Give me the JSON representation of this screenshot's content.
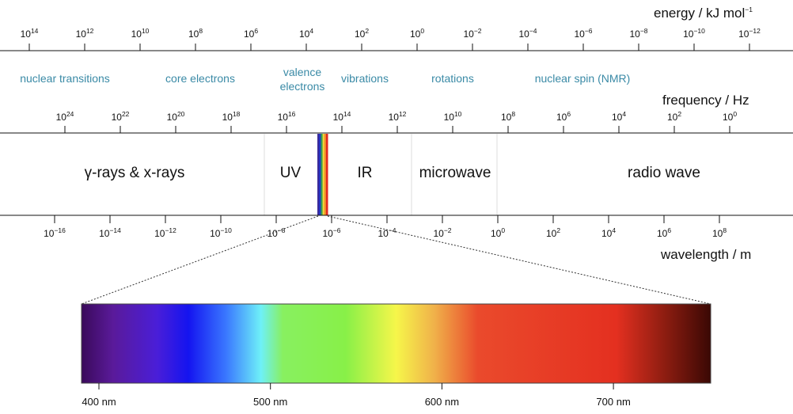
{
  "energy_axis": {
    "title": "energy / kJ mol",
    "title_exp": "−1",
    "ticks": [
      {
        "base": "10",
        "exp": "14"
      },
      {
        "base": "10",
        "exp": "12"
      },
      {
        "base": "10",
        "exp": "10"
      },
      {
        "base": "10",
        "exp": "8"
      },
      {
        "base": "10",
        "exp": "6"
      },
      {
        "base": "10",
        "exp": "4"
      },
      {
        "base": "10",
        "exp": "2"
      },
      {
        "base": "10",
        "exp": "0"
      },
      {
        "base": "10",
        "exp": "−2"
      },
      {
        "base": "10",
        "exp": "−4"
      },
      {
        "base": "10",
        "exp": "−6"
      },
      {
        "base": "10",
        "exp": "−8"
      },
      {
        "base": "10",
        "exp": "−10"
      },
      {
        "base": "10",
        "exp": "−12"
      }
    ]
  },
  "transitions": [
    {
      "lines": [
        "nuclear transitions"
      ]
    },
    {
      "lines": [
        "core electrons"
      ]
    },
    {
      "lines": [
        "valence",
        "electrons"
      ]
    },
    {
      "lines": [
        "vibrations"
      ]
    },
    {
      "lines": [
        "rotations"
      ]
    },
    {
      "lines": [
        "nuclear spin (NMR)"
      ]
    }
  ],
  "frequency_axis": {
    "title": "frequency / Hz",
    "ticks": [
      {
        "base": "10",
        "exp": "24"
      },
      {
        "base": "10",
        "exp": "22"
      },
      {
        "base": "10",
        "exp": "20"
      },
      {
        "base": "10",
        "exp": "18"
      },
      {
        "base": "10",
        "exp": "16"
      },
      {
        "base": "10",
        "exp": "14"
      },
      {
        "base": "10",
        "exp": "12"
      },
      {
        "base": "10",
        "exp": "10"
      },
      {
        "base": "10",
        "exp": "8"
      },
      {
        "base": "10",
        "exp": "6"
      },
      {
        "base": "10",
        "exp": "4"
      },
      {
        "base": "10",
        "exp": "2"
      },
      {
        "base": "10",
        "exp": "0"
      }
    ]
  },
  "regions": [
    "γ-rays & x-rays",
    "UV",
    "IR",
    "microwave",
    "radio wave"
  ],
  "wavelength_axis": {
    "title": "wavelength / m",
    "ticks": [
      {
        "base": "10",
        "exp": "−16"
      },
      {
        "base": "10",
        "exp": "−14"
      },
      {
        "base": "10",
        "exp": "−12"
      },
      {
        "base": "10",
        "exp": "−10"
      },
      {
        "base": "10",
        "exp": "−8"
      },
      {
        "base": "10",
        "exp": "−6"
      },
      {
        "base": "10",
        "exp": "−4"
      },
      {
        "base": "10",
        "exp": "−2"
      },
      {
        "base": "10",
        "exp": "0"
      },
      {
        "base": "10",
        "exp": "2"
      },
      {
        "base": "10",
        "exp": "4"
      },
      {
        "base": "10",
        "exp": "6"
      },
      {
        "base": "10",
        "exp": "8"
      }
    ]
  },
  "visible_spectrum": {
    "ticks": [
      "400 nm",
      "500 nm",
      "600 nm",
      "700 nm"
    ],
    "gradient_stops": [
      {
        "offset": 0.0,
        "color": "#3a0a5a"
      },
      {
        "offset": 0.05,
        "color": "#5a1a9a"
      },
      {
        "offset": 0.12,
        "color": "#4a1ed8"
      },
      {
        "offset": 0.17,
        "color": "#1414f0"
      },
      {
        "offset": 0.23,
        "color": "#3a78ff"
      },
      {
        "offset": 0.285,
        "color": "#6ef0f8"
      },
      {
        "offset": 0.32,
        "color": "#88f060"
      },
      {
        "offset": 0.42,
        "color": "#88f048"
      },
      {
        "offset": 0.5,
        "color": "#f6f64a"
      },
      {
        "offset": 0.56,
        "color": "#f0b24a"
      },
      {
        "offset": 0.63,
        "color": "#ea4a2c"
      },
      {
        "offset": 0.85,
        "color": "#e43020"
      },
      {
        "offset": 0.93,
        "color": "#8a1c10"
      },
      {
        "offset": 1.0,
        "color": "#3a0804"
      }
    ]
  },
  "colors": {
    "transition_text": "#3a8aa6",
    "region_divider": "#dcdcdc",
    "visible_band": [
      "#3a2a9a",
      "#2238c8",
      "#3aa04a",
      "#f2d23a",
      "#f08a2a",
      "#e02a20"
    ]
  }
}
